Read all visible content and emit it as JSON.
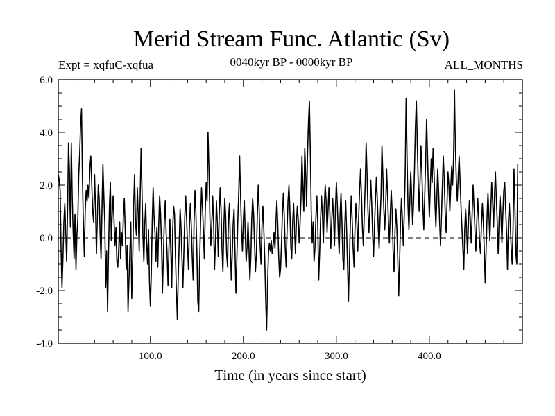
{
  "chart_data": {
    "type": "line",
    "title": "Merid Stream Func. Atlantic (Sv)",
    "header_left": "Expt = xqfuC-xqfua",
    "header_center": "0040kyr BP - 0000kyr BP",
    "header_right": "ALL_MONTHS",
    "xlabel": "Time (in years since start)",
    "ylabel": "",
    "xlim": [
      1,
      500
    ],
    "ylim": [
      -4.0,
      6.0
    ],
    "xticks": [
      100,
      200,
      300,
      400
    ],
    "xtick_labels": [
      "100.0",
      "200.0",
      "300.0",
      "400.0"
    ],
    "yticks": [
      -4,
      -2,
      0,
      2,
      4,
      6
    ],
    "ytick_labels": [
      "-4.0",
      "-2.0",
      "0.0",
      "2.0",
      "4.0",
      "6.0"
    ],
    "reference_line": 0.0,
    "series": [
      {
        "name": "Merid Stream Func. Atlantic",
        "color": "#000000",
        "x_start": 1,
        "x_step": 1,
        "values": [
          2.4,
          2.2,
          1.8,
          -0.5,
          -1.9,
          -0.8,
          0.6,
          1.3,
          0.2,
          -0.9,
          1.1,
          3.6,
          2.5,
          0.4,
          3.6,
          1.5,
          0.2,
          -0.8,
          0.9,
          -1.2,
          0.1,
          0.7,
          2.4,
          3.2,
          4.3,
          4.9,
          2.2,
          0.5,
          -0.7,
          1.1,
          1.8,
          1.4,
          2.0,
          1.5,
          2.7,
          3.1,
          2.0,
          1.0,
          0.6,
          2.4,
          1.2,
          -0.6,
          0.8,
          2.0,
          1.5,
          0.1,
          -0.8,
          1.1,
          2.8,
          1.6,
          0.6,
          -1.9,
          -0.5,
          -2.8,
          -0.6,
          1.2,
          2.1,
          -0.1,
          0.9,
          1.6,
          0.6,
          -0.3,
          0.4,
          -0.9,
          -1.1,
          -0.4,
          0.6,
          -0.8,
          0.2,
          -0.3,
          0.8,
          1.5,
          0.3,
          -1.2,
          -0.3,
          -2.8,
          -1.6,
          -0.5,
          0.6,
          -2.3,
          -0.8,
          1.2,
          2.4,
          0.6,
          0.1,
          1.9,
          0.8,
          -0.5,
          1.5,
          3.4,
          1.8,
          0.1,
          -0.9,
          0.5,
          1.3,
          -0.2,
          -1.0,
          0.3,
          -1.6,
          -2.6,
          -1.4,
          0.6,
          1.9,
          0.8,
          0.2,
          -0.9,
          0.4,
          -1.1,
          0.5,
          1.6,
          0.9,
          -0.2,
          -2.1,
          -0.7,
          0.6,
          1.4,
          0.2,
          -0.6,
          -1.8,
          -0.4,
          0.7,
          -0.5,
          -1.9,
          0.3,
          1.2,
          0.9,
          -0.7,
          -2.0,
          -3.1,
          -1.5,
          -0.2,
          1.1,
          0.4,
          -0.8,
          -1.9,
          -0.6,
          0.8,
          1.6,
          0.7,
          -0.3,
          -1.2,
          0.4,
          1.3,
          0.5,
          -0.7,
          -1.6,
          0.6,
          1.8,
          0.9,
          -0.5,
          -2.4,
          -2.8,
          -0.9,
          0.6,
          1.9,
          1.2,
          0.3,
          -0.8,
          1.0,
          2.1,
          1.4,
          4.0,
          2.6,
          0.8,
          -0.3,
          0.5,
          1.6,
          0.6,
          -1.2,
          -0.2,
          1.4,
          0.6,
          -0.7,
          0.8,
          1.9,
          1.1,
          -0.4,
          -1.3,
          0.4,
          1.5,
          0.8,
          -0.6,
          -1.1,
          0.7,
          1.3,
          -0.2,
          -1.6,
          -0.7,
          0.5,
          1.1,
          -0.5,
          -2.1,
          -0.8,
          0.6,
          1.7,
          3.1,
          1.6,
          0.3,
          -0.5,
          0.7,
          1.4,
          0.2,
          -0.9,
          -0.3,
          0.6,
          -0.4,
          -1.6,
          -0.8,
          0.7,
          1.5,
          0.9,
          -0.2,
          -1.3,
          -0.6,
          0.8,
          2.0,
          1.1,
          -0.3,
          -1.0,
          0.4,
          1.2,
          0.3,
          -0.8,
          -2.3,
          -3.5,
          -1.8,
          -0.6,
          -0.2,
          -0.5,
          -0.1,
          -0.6,
          -0.3,
          0.2,
          -0.4,
          0.6,
          1.4,
          0.5,
          -0.7,
          -1.5,
          -1.2,
          -0.2,
          0.9,
          1.7,
          0.8,
          -0.4,
          -1.1,
          0.3,
          1.4,
          2.0,
          1.1,
          -0.3,
          -0.8,
          0.6,
          1.3,
          0.4,
          -0.6,
          0.5,
          1.2,
          0.7,
          -0.2,
          0.6,
          1.5,
          3.1,
          2.0,
          1.0,
          3.4,
          2.5,
          1.2,
          3.2,
          4.4,
          5.2,
          3.3,
          1.0,
          -0.2,
          0.6,
          -0.9,
          -0.4,
          0.8,
          1.6,
          0.5,
          -1.6,
          -0.6,
          0.7,
          1.6,
          0.9,
          -0.2,
          1.2,
          2.0,
          1.4,
          0.2,
          1.0,
          1.9,
          0.9,
          -0.4,
          0.6,
          1.5,
          0.8,
          -0.3,
          1.1,
          2.1,
          1.3,
          0.2,
          -0.6,
          0.9,
          1.7,
          0.6,
          -0.8,
          -1.2,
          0.4,
          1.4,
          0.3,
          -1.0,
          -2.4,
          -0.9,
          0.5,
          1.6,
          0.7,
          -0.4,
          -1.1,
          0.3,
          1.3,
          0.6,
          -0.5,
          0.8,
          1.8,
          2.6,
          1.6,
          0.4,
          -0.3,
          0.9,
          2.0,
          3.6,
          2.4,
          1.0,
          0.2,
          1.1,
          2.2,
          1.3,
          0.1,
          -0.7,
          0.5,
          1.4,
          2.3,
          1.5,
          0.4,
          -0.4,
          0.7,
          1.6,
          3.5,
          2.4,
          1.1,
          0.3,
          1.2,
          2.6,
          1.7,
          0.6,
          -0.2,
          0.9,
          1.8,
          1.0,
          -0.5,
          -1.3,
          0.2,
          1.1,
          0.4,
          -0.8,
          -2.2,
          -0.9,
          0.6,
          1.5,
          0.7,
          -0.3,
          0.9,
          2.4,
          5.3,
          3.1,
          1.2,
          0.3,
          1.4,
          2.5,
          1.6,
          0.5,
          1.3,
          2.6,
          4.2,
          5.2,
          3.6,
          2.1,
          1.0,
          2.2,
          3.5,
          2.4,
          1.2,
          0.3,
          1.6,
          2.9,
          4.5,
          3.2,
          1.8,
          0.8,
          1.9,
          3.0,
          2.1,
          3.4,
          2.5,
          1.3,
          0.4,
          1.5,
          2.6,
          1.7,
          0.6,
          -0.3,
          0.8,
          2.0,
          3.1,
          2.2,
          1.0,
          0.2,
          1.3,
          2.5,
          2.0,
          1.0,
          1.9,
          2.7,
          2.0,
          3.0,
          5.6,
          3.4,
          2.2,
          1.4,
          2.3,
          3.1,
          2.2,
          1.2,
          0.4,
          -0.4,
          -1.2,
          0.3,
          1.1,
          0.4,
          -0.6,
          0.5,
          1.4,
          0.7,
          -0.2,
          0.9,
          2.0,
          1.2,
          0.3,
          -0.5,
          0.6,
          1.5,
          0.8,
          -0.2,
          -0.6,
          0.5,
          1.3,
          0.6,
          -0.4,
          -1.7,
          -0.5,
          0.8,
          1.7,
          0.9,
          -0.1,
          1.0,
          2.1,
          1.4,
          0.4,
          1.6,
          2.5,
          1.5,
          0.6,
          -0.6,
          0.7,
          1.6,
          0.8,
          -0.2,
          0.9,
          1.8,
          2.1,
          1.1,
          0.2,
          -1.2,
          0.6,
          1.3,
          0.5,
          -0.4,
          -1.0,
          0.4,
          2.6,
          1.1,
          -0.6,
          -1.0,
          2.8
        ]
      }
    ]
  }
}
